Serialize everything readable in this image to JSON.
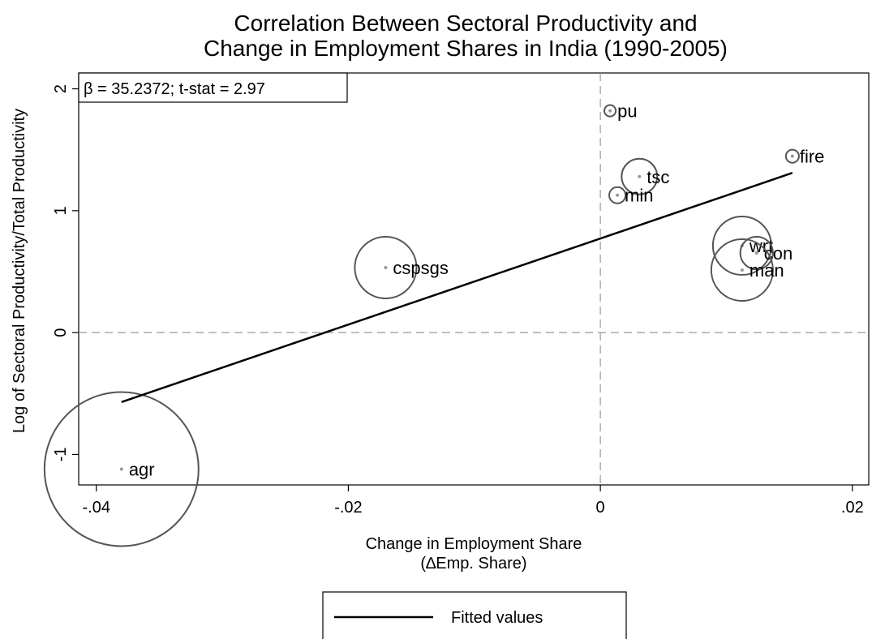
{
  "chart_data": {
    "type": "scatter",
    "title": [
      "Correlation Between Sectoral Productivity and",
      "Change in Employment Shares in India (1990-2005)"
    ],
    "xlabel": [
      "Change in Employment Share",
      "(∆Emp. Share)"
    ],
    "ylabel": "Log of Sectoral Productivity/Total Productivity",
    "annotation": "β =  35.2372; t-stat = 2.97",
    "xlim": [
      -0.0414,
      0.0213
    ],
    "ylim": [
      -1.25,
      2.13
    ],
    "xticks": [
      {
        "value": -0.04,
        "label": "-.04"
      },
      {
        "value": -0.02,
        "label": "-.02"
      },
      0,
      {
        "value": 0.02,
        "label": ".02"
      }
    ],
    "yticks": [
      -1,
      0,
      1,
      2
    ],
    "xline": 0,
    "yline": 0,
    "series": [
      {
        "type": "scatter",
        "color": "#555555",
        "categories": [
          "agr",
          "cspsgs",
          "pu",
          "tsc",
          "min",
          "fire",
          "wrt",
          "con",
          "man"
        ],
        "x": [
          -0.038,
          -0.01704,
          0.00077,
          0.0031,
          0.00135,
          0.01524,
          0.01125,
          0.0124,
          0.01125
        ],
        "values": [
          -1.12,
          0.533,
          1.82,
          1.28,
          1.127,
          1.447,
          0.713,
          0.653,
          0.513
        ],
        "sizes": [
          60,
          9.6,
          0.33,
          3.2,
          0.67,
          0.43,
          8.6,
          2.7,
          9.6
        ]
      },
      {
        "type": "line",
        "name": "Fitted values",
        "color": "#000000",
        "x": [
          -0.038,
          0.01524
        ],
        "values": [
          -0.57,
          1.31
        ]
      }
    ]
  }
}
